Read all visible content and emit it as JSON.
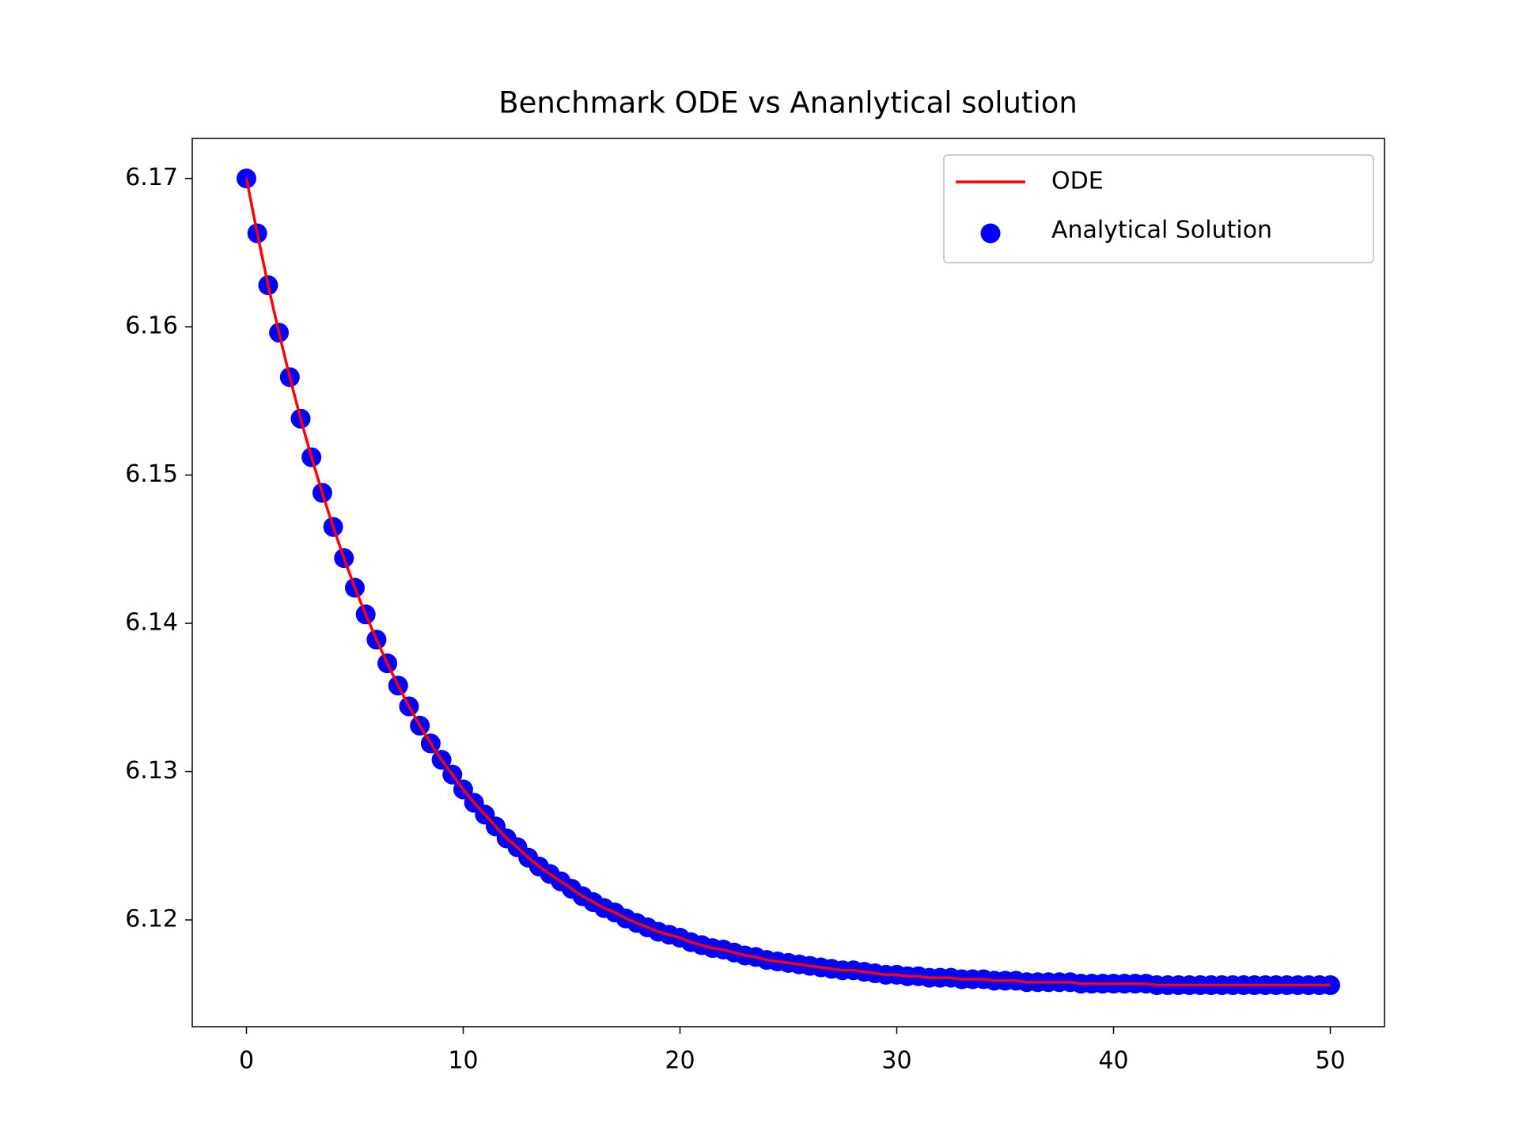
{
  "chart_data": {
    "type": "line+scatter",
    "title": "Benchmark ODE vs Ananlytical solution",
    "x": [
      0,
      0.5,
      1,
      1.5,
      2,
      2.5,
      3,
      3.5,
      4,
      4.5,
      5,
      5.5,
      6,
      6.5,
      7,
      7.5,
      8,
      8.5,
      9,
      9.5,
      10,
      10.5,
      11,
      11.5,
      12,
      12.5,
      13,
      13.5,
      14,
      14.5,
      15,
      15.5,
      16,
      16.5,
      17,
      17.5,
      18,
      18.5,
      19,
      19.5,
      20,
      20.5,
      21,
      21.5,
      22,
      22.5,
      23,
      23.5,
      24,
      24.5,
      25,
      25.5,
      26,
      26.5,
      27,
      27.5,
      28,
      28.5,
      29,
      29.5,
      30,
      30.5,
      31,
      31.5,
      32,
      32.5,
      33,
      33.5,
      34,
      34.5,
      35,
      35.5,
      36,
      36.5,
      37,
      37.5,
      38,
      38.5,
      39,
      39.5,
      40,
      40.5,
      41,
      41.5,
      42,
      42.5,
      43,
      43.5,
      44,
      44.5,
      45,
      45.5,
      46,
      46.5,
      47,
      47.5,
      48,
      48.5,
      49,
      49.5,
      50
    ],
    "series": [
      {
        "name": "ODE",
        "kind": "line",
        "color": "#ff0000",
        "values": [
          6.17,
          6.1663,
          6.1628,
          6.1596,
          6.1566,
          6.1538,
          6.1512,
          6.1488,
          6.1465,
          6.1444,
          6.1424,
          6.1406,
          6.1389,
          6.1373,
          6.1358,
          6.1344,
          6.1331,
          6.1319,
          6.1308,
          6.1298,
          6.1288,
          6.1279,
          6.1271,
          6.1263,
          6.1255,
          6.1249,
          6.1242,
          6.1236,
          6.1231,
          6.1226,
          6.1221,
          6.1216,
          6.1212,
          6.1208,
          6.1205,
          6.1201,
          6.1198,
          6.1195,
          6.1192,
          6.119,
          6.1188,
          6.1185,
          6.1183,
          6.1181,
          6.118,
          6.1178,
          6.1176,
          6.1175,
          6.1173,
          6.1172,
          6.1171,
          6.117,
          6.1169,
          6.1168,
          6.1167,
          6.1166,
          6.1166,
          6.1165,
          6.1164,
          6.1163,
          6.1163,
          6.1162,
          6.1162,
          6.1161,
          6.1161,
          6.1161,
          6.116,
          6.116,
          6.116,
          6.1159,
          6.1159,
          6.1159,
          6.1158,
          6.1158,
          6.1158,
          6.1158,
          6.1158,
          6.1157,
          6.1157,
          6.1157,
          6.1157,
          6.1157,
          6.1157,
          6.1157,
          6.1156,
          6.1156,
          6.1156,
          6.1156,
          6.1156,
          6.1156,
          6.1156,
          6.1156,
          6.1156,
          6.1156,
          6.1156,
          6.1156,
          6.1156,
          6.1156,
          6.1156,
          6.1156,
          6.1156
        ]
      },
      {
        "name": "Analytical Solution",
        "kind": "scatter",
        "color": "#0000ff",
        "values": [
          6.17,
          6.1663,
          6.1628,
          6.1596,
          6.1566,
          6.1538,
          6.1512,
          6.1488,
          6.1465,
          6.1444,
          6.1424,
          6.1406,
          6.1389,
          6.1373,
          6.1358,
          6.1344,
          6.1331,
          6.1319,
          6.1308,
          6.1298,
          6.1288,
          6.1279,
          6.1271,
          6.1263,
          6.1255,
          6.1249,
          6.1242,
          6.1236,
          6.1231,
          6.1226,
          6.1221,
          6.1216,
          6.1212,
          6.1208,
          6.1205,
          6.1201,
          6.1198,
          6.1195,
          6.1192,
          6.119,
          6.1188,
          6.1185,
          6.1183,
          6.1181,
          6.118,
          6.1178,
          6.1176,
          6.1175,
          6.1173,
          6.1172,
          6.1171,
          6.117,
          6.1169,
          6.1168,
          6.1167,
          6.1166,
          6.1166,
          6.1165,
          6.1164,
          6.1163,
          6.1163,
          6.1162,
          6.1162,
          6.1161,
          6.1161,
          6.1161,
          6.116,
          6.116,
          6.116,
          6.1159,
          6.1159,
          6.1159,
          6.1158,
          6.1158,
          6.1158,
          6.1158,
          6.1158,
          6.1157,
          6.1157,
          6.1157,
          6.1157,
          6.1157,
          6.1157,
          6.1157,
          6.1156,
          6.1156,
          6.1156,
          6.1156,
          6.1156,
          6.1156,
          6.1156,
          6.1156,
          6.1156,
          6.1156,
          6.1156,
          6.1156,
          6.1156,
          6.1156,
          6.1156,
          6.1156,
          6.1156
        ]
      }
    ],
    "xlim": [
      -2.5,
      52.5
    ],
    "xticks": [
      0,
      10,
      20,
      30,
      40,
      50
    ],
    "ylim": [
      6.1128,
      6.1727
    ],
    "yticks": [
      6.12,
      6.13,
      6.14,
      6.15,
      6.16,
      6.17
    ],
    "grid": false,
    "legend": "upper right"
  }
}
